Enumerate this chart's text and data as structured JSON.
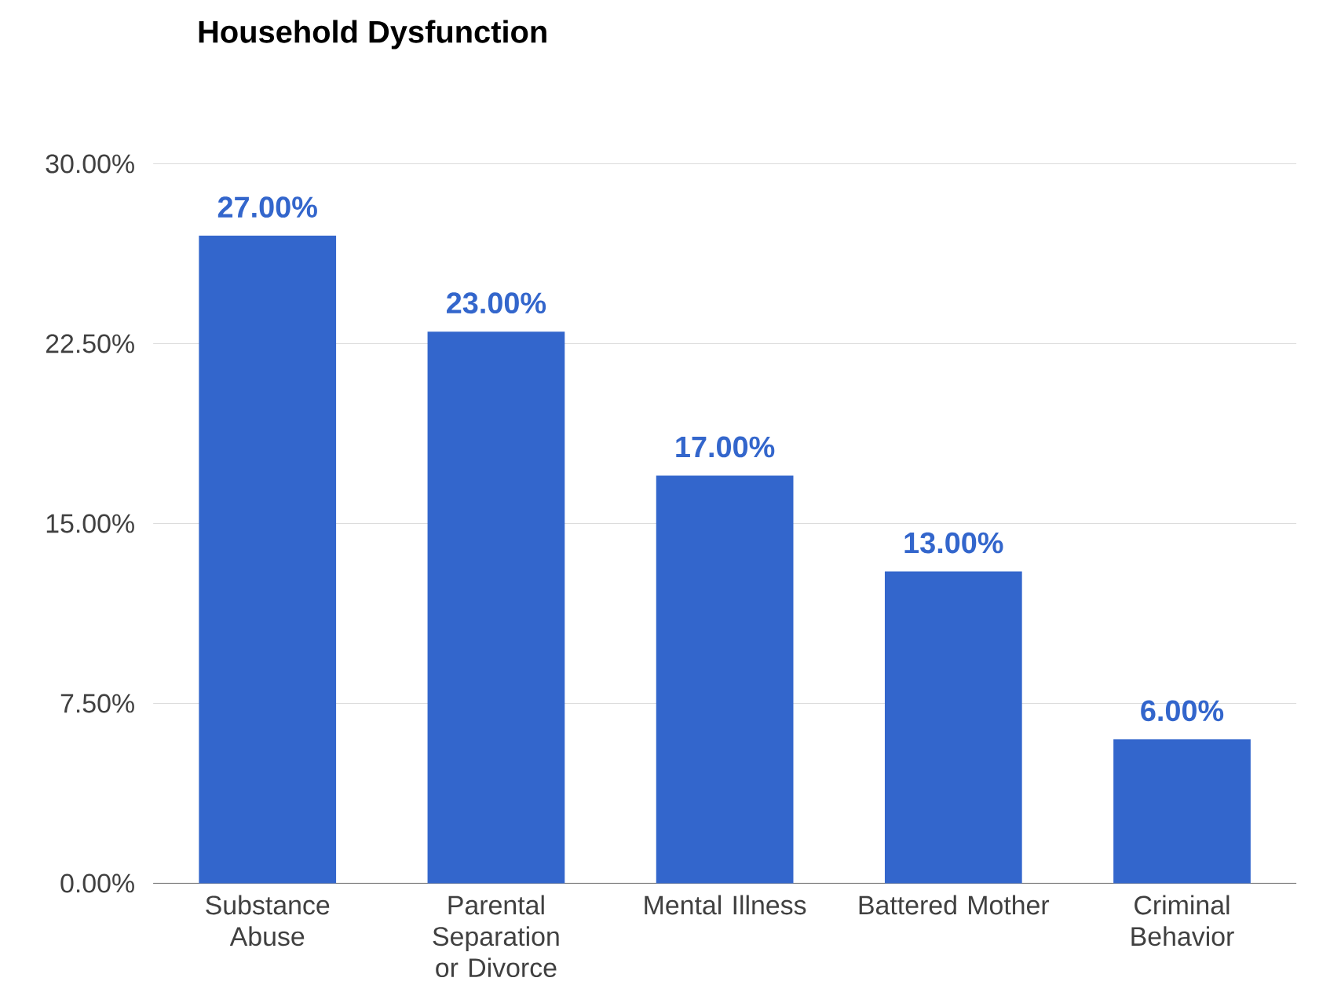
{
  "chart_data": {
    "type": "bar",
    "title": "Household Dysfunction",
    "categories": [
      "Substance Abuse",
      "Parental Separation or Divorce",
      "Mental Illness",
      "Battered Mother",
      "Criminal Behavior"
    ],
    "values": [
      27,
      23,
      17,
      13,
      6
    ],
    "value_labels": [
      "27.00%",
      "23.00%",
      "17.00%",
      "13.00%",
      "6.00%"
    ],
    "color": "#3366cc",
    "ylim": [
      0,
      30
    ],
    "yticks": [
      {
        "value": 0,
        "label": "0.00%"
      },
      {
        "value": 7.5,
        "label": "7.50%"
      },
      {
        "value": 15,
        "label": "15.00%"
      },
      {
        "value": 22.5,
        "label": "22.50%"
      },
      {
        "value": 30,
        "label": "30.00%"
      }
    ],
    "grid": "y"
  }
}
